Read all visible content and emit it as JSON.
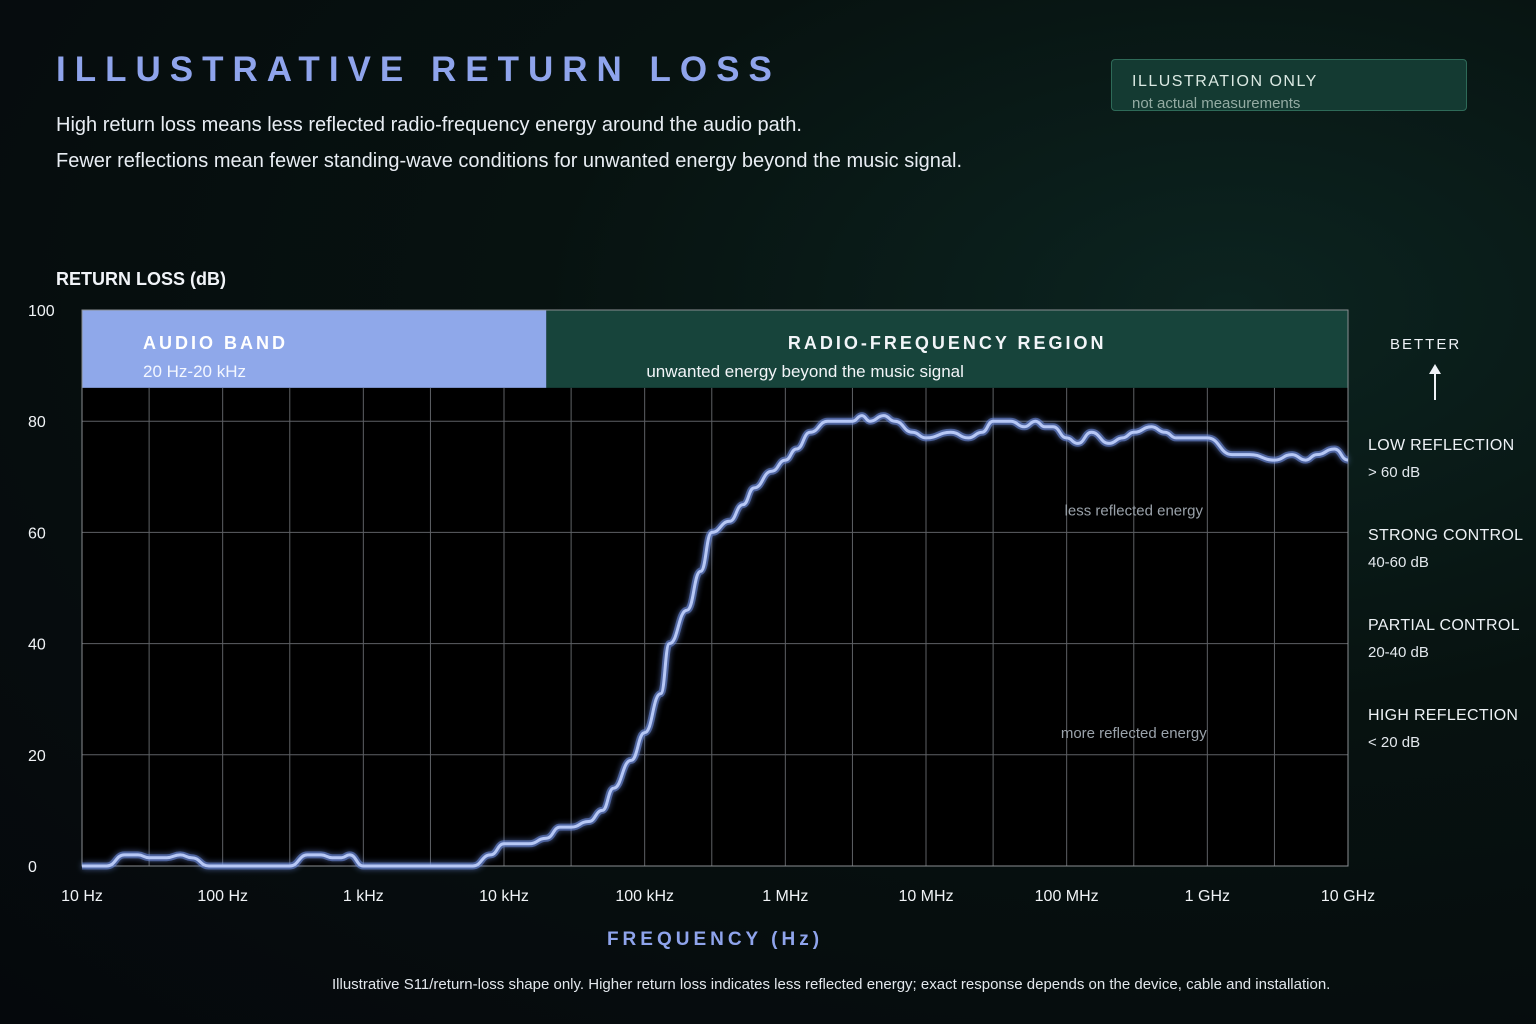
{
  "header": {
    "title": "ILLUSTRATIVE RETURN LOSS",
    "subtitle_1": "High return loss means less reflected radio-frequency energy around the audio path.",
    "subtitle_2": "Fewer reflections mean fewer standing-wave conditions for unwanted energy beyond the music signal."
  },
  "badge": {
    "title": "ILLUSTRATION ONLY",
    "note": "not actual measurements"
  },
  "footnote": "Illustrative S11/return-loss shape only. Higher return loss indicates less reflected energy; exact response depends on the device, cable and installation.",
  "side_panel": {
    "better_label": "BETTER",
    "levels": [
      {
        "title": "LOW REFLECTION",
        "range": "> 60 dB"
      },
      {
        "title": "STRONG CONTROL",
        "range": "40-60 dB"
      },
      {
        "title": "PARTIAL CONTROL",
        "range": "20-40 dB"
      },
      {
        "title": "HIGH REFLECTION",
        "range": "< 20 dB"
      }
    ]
  },
  "colors": {
    "curve": "#b7c8f6",
    "audio_band": "#8fa8ea",
    "rf_band": "#17443b",
    "accent_text": "#8fa4ec"
  },
  "chart_data": {
    "type": "line",
    "xlabel": "FREQUENCY (Hz)",
    "ylabel": "RETURN LOSS (dB)",
    "x_scale": "log",
    "xlim": [
      10,
      10000000000
    ],
    "ylim": [
      0,
      100
    ],
    "x_ticks": [
      {
        "value": 10,
        "label": "10 Hz"
      },
      {
        "value": 100,
        "label": "100 Hz"
      },
      {
        "value": 1000,
        "label": "1 kHz"
      },
      {
        "value": 10000,
        "label": "10 kHz"
      },
      {
        "value": 100000,
        "label": "100 kHz"
      },
      {
        "value": 1000000,
        "label": "1 MHz"
      },
      {
        "value": 10000000,
        "label": "10 MHz"
      },
      {
        "value": 100000000,
        "label": "100 MHz"
      },
      {
        "value": 1000000000,
        "label": "1 GHz"
      },
      {
        "value": 10000000000,
        "label": "10 GHz"
      }
    ],
    "y_ticks": [
      0,
      20,
      40,
      60,
      80,
      100
    ],
    "bands": [
      {
        "label": "AUDIO BAND",
        "sublabel": "20 Hz-20 kHz",
        "from": 10,
        "to": 20000,
        "y_from": 86,
        "y_to": 100
      },
      {
        "label": "RADIO-FREQUENCY REGION",
        "sublabel": "unwanted energy beyond the music signal",
        "from": 20000,
        "to": 10000000000,
        "y_from": 86,
        "y_to": 100
      }
    ],
    "annotations": [
      {
        "text": "less reflected energy",
        "x": 300000000,
        "y": 63
      },
      {
        "text": "more reflected energy",
        "x": 300000000,
        "y": 23
      }
    ],
    "grid": true,
    "series": [
      {
        "x": [
          10,
          15,
          20,
          25,
          30,
          40,
          50,
          60,
          80,
          100,
          150,
          200,
          250,
          300,
          400,
          500,
          600,
          700,
          800,
          1000,
          1500,
          2000,
          3000,
          4000,
          5000,
          6000,
          8000,
          10000,
          15000,
          20000,
          25000,
          30000,
          40000,
          50000,
          60000,
          80000,
          100000,
          130000,
          150000,
          200000,
          250000,
          300000,
          400000,
          500000,
          600000,
          800000,
          1000000,
          1200000,
          1500000,
          2000000,
          2500000,
          3000000,
          3500000,
          4000000,
          5000000,
          6000000,
          8000000,
          10000000,
          15000000,
          20000000,
          25000000,
          30000000,
          40000000,
          50000000,
          60000000,
          70000000,
          80000000,
          100000000,
          120000000,
          150000000,
          200000000,
          250000000,
          300000000,
          400000000,
          500000000,
          600000000,
          800000000,
          1000000000,
          1500000000,
          2000000000,
          3000000000,
          4000000000,
          5000000000,
          6000000000,
          8000000000,
          10000000000
        ],
        "y": [
          0,
          0,
          2,
          2,
          1.5,
          1.5,
          2,
          1.5,
          0,
          0,
          0,
          0,
          0,
          0,
          2,
          2,
          1.5,
          1.5,
          2,
          0,
          0,
          0,
          0,
          0,
          0,
          0,
          2,
          4,
          4,
          5,
          7,
          7,
          8,
          10,
          14,
          19,
          24,
          31,
          40,
          46,
          53,
          60,
          62,
          65,
          68,
          71,
          73,
          75,
          78,
          80,
          80,
          80,
          81,
          80,
          81,
          80,
          78,
          77,
          78,
          77,
          78,
          80,
          80,
          79,
          80,
          79,
          79,
          77,
          76,
          78,
          76,
          77,
          78,
          79,
          78,
          77,
          77,
          77,
          74,
          74,
          73,
          74,
          73,
          74,
          75,
          73
        ]
      }
    ]
  }
}
